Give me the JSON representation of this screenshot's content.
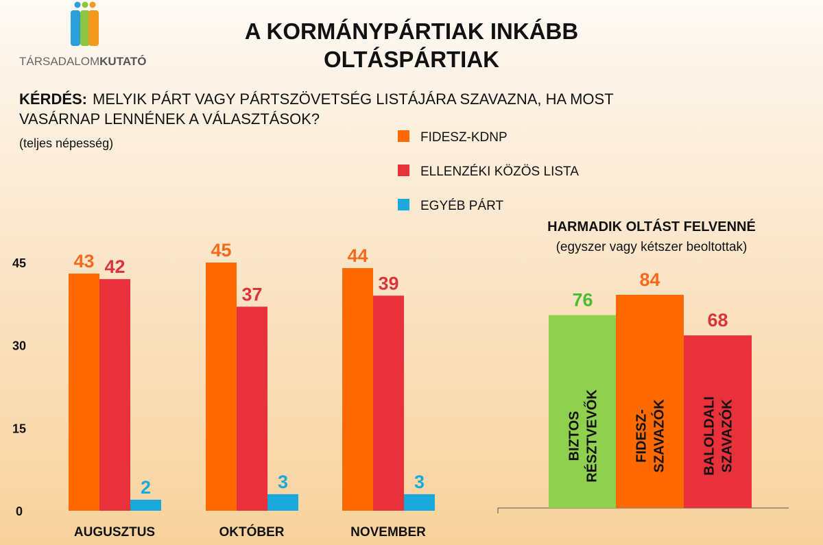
{
  "logo": {
    "text_light": "TÁRSADALOM",
    "text_bold": "KUTATÓ"
  },
  "title_line1": "A KORMÁNYPÁRTIAK INKÁBB",
  "title_line2": "OLTÁSPÁRTIAK",
  "question_label": "KÉRDÉS:",
  "question_line1": "MELYIK PÁRT VAGY PÁRTSZÖVETSÉG LISTÁJÁRA SZAVAZNA, HA MOST",
  "question_line2": "VASÁRNAP LENNÉNEK A VÁLASZTÁSOK?",
  "population": "(teljes népesség)",
  "chart_data": [
    {
      "type": "bar",
      "title": "",
      "categories": [
        "AUGUSZTUS",
        "OKTÓBER",
        "NOVEMBER"
      ],
      "series": [
        {
          "name": "FIDESZ-KDNP",
          "color": "#ff6a00",
          "label_color": "#f26a1b",
          "values": [
            43,
            45,
            44
          ]
        },
        {
          "name": "ELLENZÉKI KÖZÖS LISTA",
          "color": "#e8313a",
          "label_color": "#d9343a",
          "values": [
            42,
            37,
            39
          ]
        },
        {
          "name": "EGYÉB PÁRT",
          "color": "#1ba9dc",
          "label_color": "#1ba9dc",
          "values": [
            2,
            3,
            3
          ]
        }
      ],
      "yticks": [
        "0",
        "15",
        "30",
        "45"
      ],
      "ylim": [
        0,
        45
      ],
      "legend": "top-center"
    },
    {
      "type": "bar",
      "title": "HARMADIK OLTÁST FELVENNÉ",
      "subtitle": "(egyszer vagy kétszer beoltottak)",
      "categories": [
        [
          "BIZTOS",
          "RÉSZTVEVŐK"
        ],
        [
          "FIDESZ-",
          "SZAVAZÓK"
        ],
        [
          "BALOLDALI",
          "SZAVAZÓK"
        ]
      ],
      "values": [
        76,
        84,
        68
      ],
      "colors": [
        "#8fd14f",
        "#ff6a00",
        "#e8313a"
      ],
      "label_colors": [
        "#4cbb2e",
        "#f26a1b",
        "#d9343a"
      ],
      "ylim": [
        0,
        84
      ]
    }
  ]
}
